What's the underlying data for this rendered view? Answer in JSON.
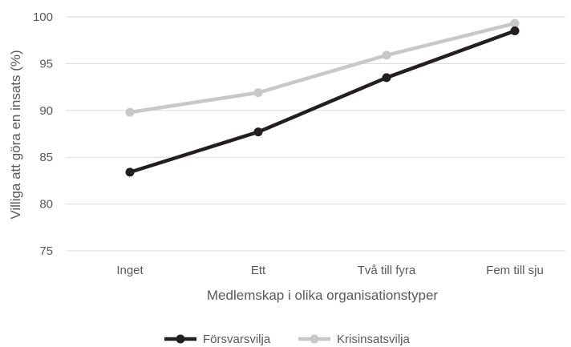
{
  "chart_data": {
    "type": "line",
    "categories": [
      "Inget",
      "Ett",
      "Två till fyra",
      "Fem till sju"
    ],
    "series": [
      {
        "name": "Försvarsvilja",
        "values": [
          83.4,
          87.7,
          93.5,
          98.5
        ],
        "color": "#231f20"
      },
      {
        "name": "Krisinsatsvilja",
        "values": [
          89.8,
          91.9,
          95.9,
          99.3
        ],
        "color": "#c8c8c8"
      }
    ],
    "xlabel": "Medlemskap i olika organisationstyper",
    "ylabel": "Villiga att göra en insats (%)",
    "ylim": [
      75,
      100
    ],
    "yticks": [
      75,
      80,
      85,
      90,
      95,
      100
    ],
    "grid": true,
    "legend_position": "bottom"
  }
}
